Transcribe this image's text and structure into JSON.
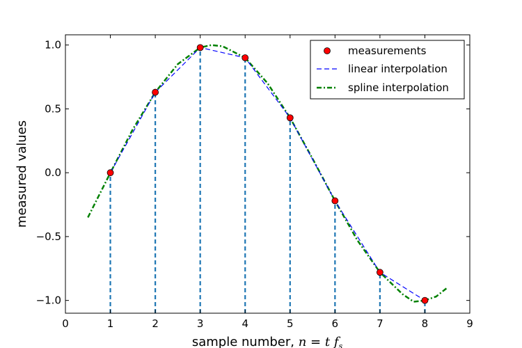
{
  "chart_data": {
    "type": "line",
    "xlabel": "sample number, ",
    "xlabel_math": {
      "n": "n",
      "eq": " = ",
      "t": "t",
      "f": "f",
      "sub": "s"
    },
    "ylabel": "measured values",
    "xlim": [
      0,
      9
    ],
    "ylim": [
      -1.1,
      1.08
    ],
    "x_ticks": [
      0,
      1,
      2,
      3,
      4,
      5,
      6,
      7,
      8,
      9
    ],
    "x_tick_labels": [
      "0",
      "1",
      "2",
      "3",
      "4",
      "5",
      "6",
      "7",
      "8",
      "9"
    ],
    "y_ticks": [
      1.0,
      0.5,
      0.0,
      -0.5,
      -1.0
    ],
    "y_tick_labels": [
      "1.0",
      "0.5",
      "0.0",
      "−0.5",
      "−1.0"
    ],
    "grid": false,
    "legend_position": "top-right",
    "stems": {
      "color": "#1f77b4",
      "x": [
        1,
        2,
        3,
        4,
        5,
        6,
        7,
        8
      ],
      "y": [
        0.0,
        0.63,
        0.98,
        0.9,
        0.43,
        -0.22,
        -0.78,
        -1.0
      ]
    },
    "series": [
      {
        "name": "measurements",
        "style": "marker",
        "color": "#ff0000",
        "x": [
          1,
          2,
          3,
          4,
          5,
          6,
          7,
          8
        ],
        "y": [
          0.0,
          0.63,
          0.98,
          0.9,
          0.43,
          -0.22,
          -0.78,
          -1.0
        ]
      },
      {
        "name": "linear interpolation",
        "style": "dashed",
        "color": "#0000ff",
        "x": [
          1,
          2,
          3,
          4,
          5,
          6,
          7,
          8
        ],
        "y": [
          0.0,
          0.63,
          0.98,
          0.9,
          0.43,
          -0.22,
          -0.78,
          -1.0
        ]
      },
      {
        "name": "spline interpolation",
        "style": "dashdot",
        "color": "#008000",
        "x": [
          0.5,
          1.0,
          1.5,
          2.0,
          2.5,
          3.0,
          3.25,
          3.5,
          4.0,
          4.5,
          5.0,
          5.5,
          6.0,
          6.5,
          7.0,
          7.5,
          7.75,
          8.0,
          8.25,
          8.5
        ],
        "y": [
          -0.35,
          0.0,
          0.34,
          0.63,
          0.85,
          0.98,
          1.0,
          0.99,
          0.9,
          0.7,
          0.43,
          0.11,
          -0.22,
          -0.53,
          -0.78,
          -0.95,
          -1.01,
          -1.0,
          -0.97,
          -0.9
        ]
      }
    ]
  }
}
